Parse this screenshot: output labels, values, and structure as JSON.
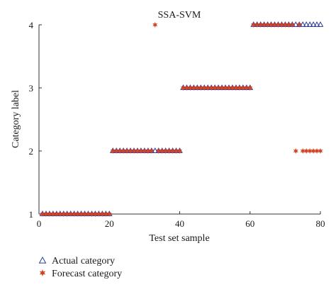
{
  "chart_data": {
    "type": "scatter",
    "title": "SSA-SVM",
    "xlabel": "Test set sample",
    "ylabel": "Category label",
    "xlim": [
      0,
      80
    ],
    "ylim": [
      1,
      4
    ],
    "xticks": [
      0,
      20,
      40,
      60,
      80
    ],
    "yticks": [
      1,
      2,
      3,
      4
    ],
    "grid": false,
    "legend_position": "bottom-left",
    "x": [
      1,
      2,
      3,
      4,
      5,
      6,
      7,
      8,
      9,
      10,
      11,
      12,
      13,
      14,
      15,
      16,
      17,
      18,
      19,
      20,
      21,
      22,
      23,
      24,
      25,
      26,
      27,
      28,
      29,
      30,
      31,
      32,
      33,
      34,
      35,
      36,
      37,
      38,
      39,
      40,
      41,
      42,
      43,
      44,
      45,
      46,
      47,
      48,
      49,
      50,
      51,
      52,
      53,
      54,
      55,
      56,
      57,
      58,
      59,
      60,
      61,
      62,
      63,
      64,
      65,
      66,
      67,
      68,
      69,
      70,
      71,
      72,
      73,
      74,
      75,
      76,
      77,
      78,
      79,
      80
    ],
    "series": [
      {
        "name": "Actual category",
        "marker": "triangle",
        "color": "#2b3a9a",
        "values": [
          1,
          1,
          1,
          1,
          1,
          1,
          1,
          1,
          1,
          1,
          1,
          1,
          1,
          1,
          1,
          1,
          1,
          1,
          1,
          1,
          2,
          2,
          2,
          2,
          2,
          2,
          2,
          2,
          2,
          2,
          2,
          2,
          2,
          2,
          2,
          2,
          2,
          2,
          2,
          2,
          3,
          3,
          3,
          3,
          3,
          3,
          3,
          3,
          3,
          3,
          3,
          3,
          3,
          3,
          3,
          3,
          3,
          3,
          3,
          3,
          4,
          4,
          4,
          4,
          4,
          4,
          4,
          4,
          4,
          4,
          4,
          4,
          4,
          4,
          4,
          4,
          4,
          4,
          4,
          4
        ]
      },
      {
        "name": "Forecast category",
        "marker": "star",
        "color": "#d8401e",
        "values": [
          1,
          1,
          1,
          1,
          1,
          1,
          1,
          1,
          1,
          1,
          1,
          1,
          1,
          1,
          1,
          1,
          1,
          1,
          1,
          1,
          2,
          2,
          2,
          2,
          2,
          2,
          2,
          2,
          2,
          2,
          2,
          2,
          4,
          2,
          2,
          2,
          2,
          2,
          2,
          2,
          3,
          3,
          3,
          3,
          3,
          3,
          3,
          3,
          3,
          3,
          3,
          3,
          3,
          3,
          3,
          3,
          3,
          3,
          3,
          3,
          4,
          4,
          4,
          4,
          4,
          4,
          4,
          4,
          4,
          4,
          4,
          4,
          2,
          4,
          2,
          2,
          2,
          2,
          2,
          2
        ]
      }
    ]
  }
}
